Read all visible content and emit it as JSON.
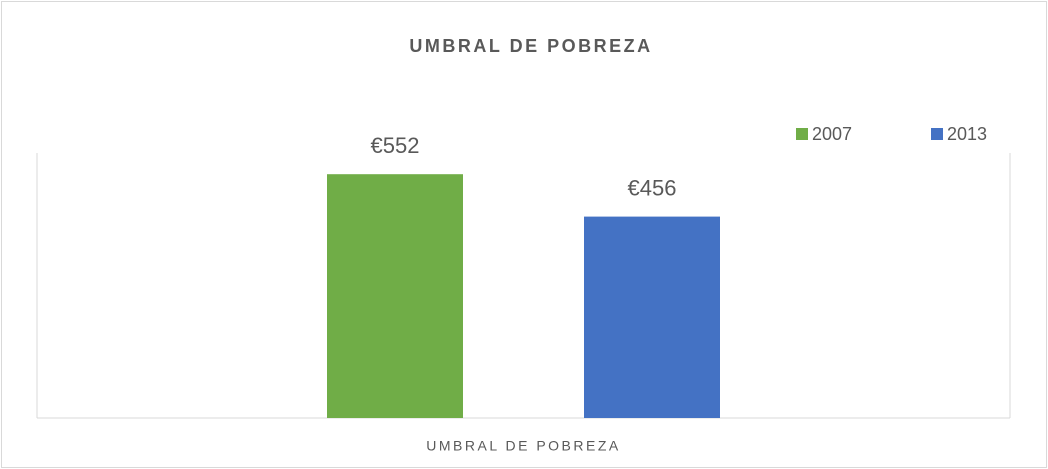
{
  "chart_data": {
    "type": "bar",
    "title": "UMBRAL DE POBREZA",
    "categories": [
      "UMBRAL DE POBREZA"
    ],
    "series": [
      {
        "name": "2007",
        "color": "#70ad47",
        "values": [
          552
        ],
        "value_labels": [
          "€552"
        ]
      },
      {
        "name": "2013",
        "color": "#4472c4",
        "values": [
          456
        ],
        "value_labels": [
          "€456"
        ]
      }
    ],
    "ylim": [
      0,
      600
    ],
    "legend": "top-right"
  }
}
